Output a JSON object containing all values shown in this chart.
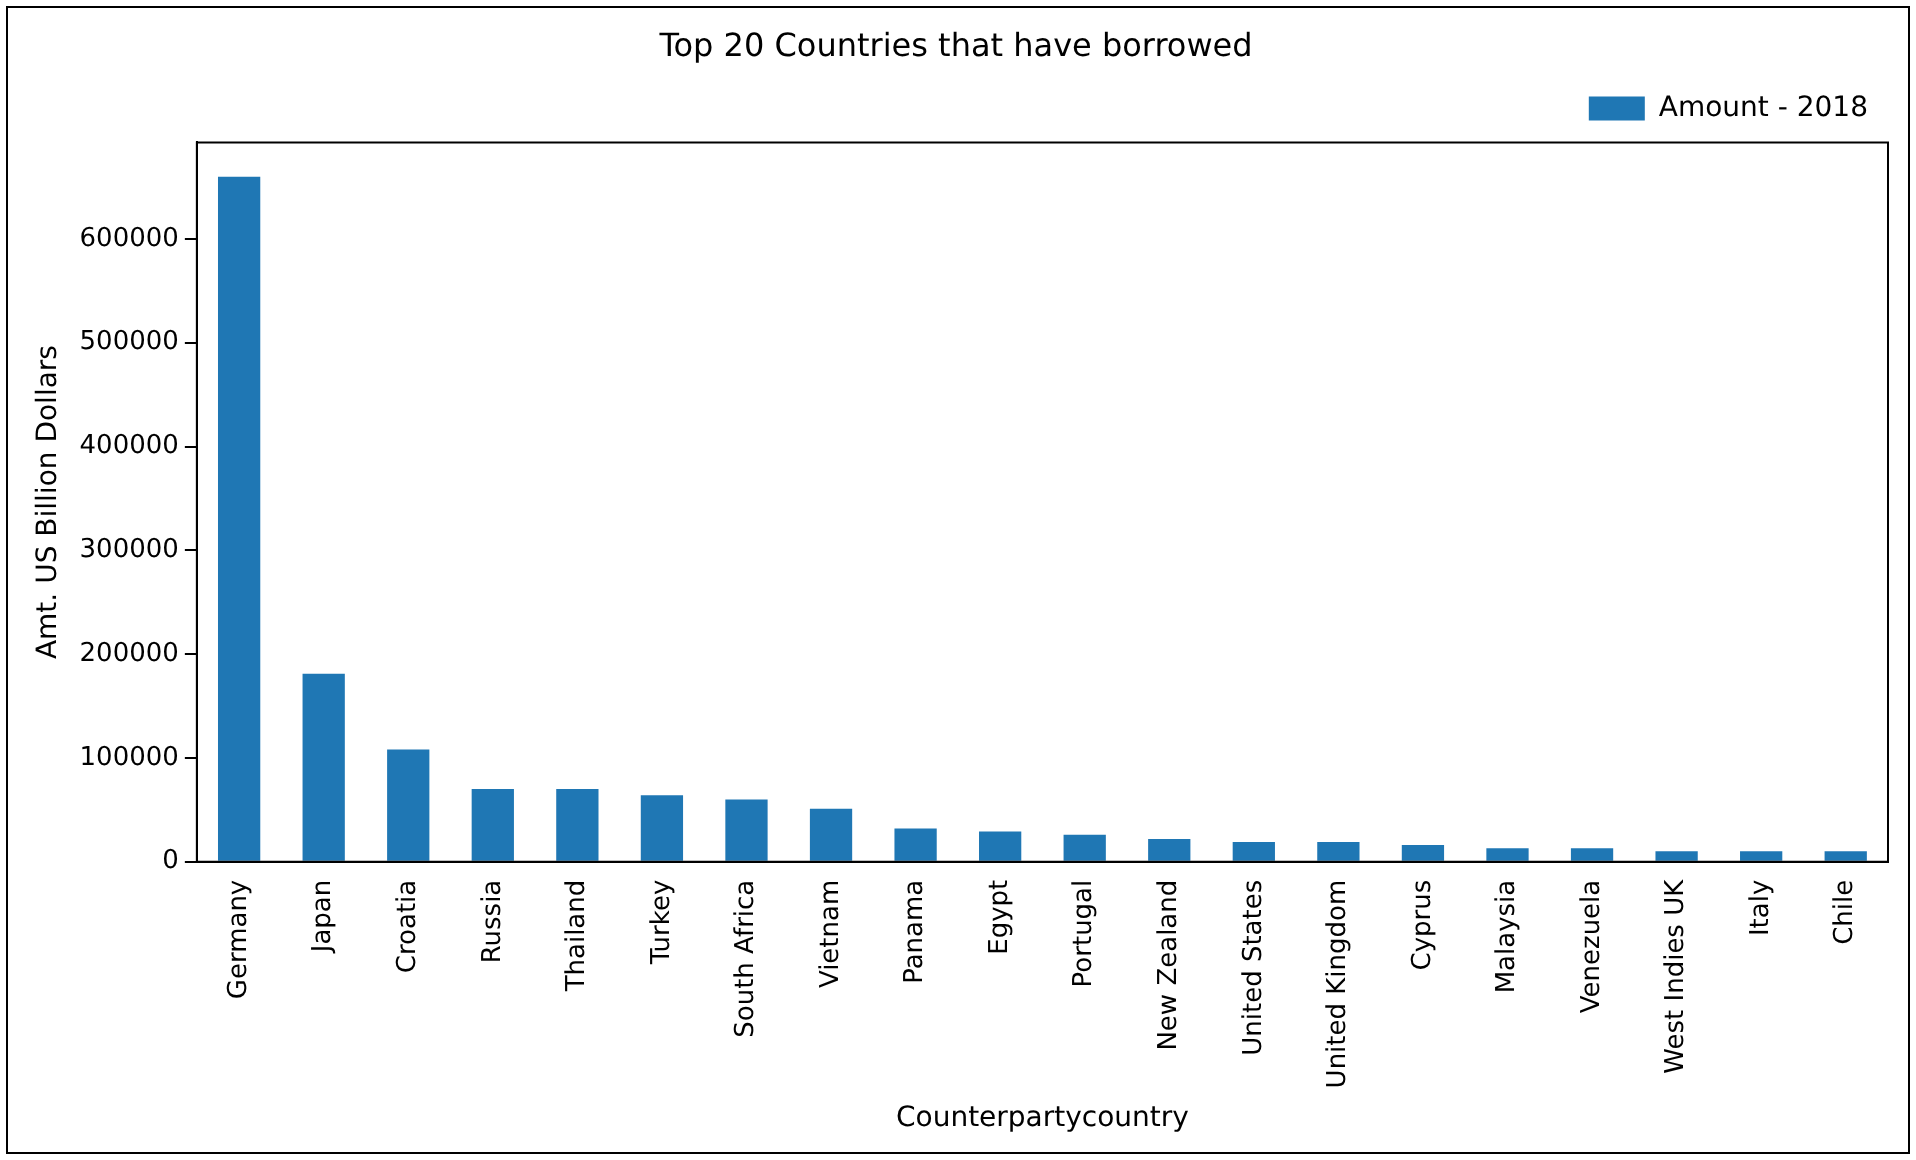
{
  "chart_data": {
    "type": "bar",
    "title": "Top 20 Countries that have borrowed",
    "xlabel": "Counterpartycountry",
    "ylabel": "Amt. US Billion Dollars",
    "categories": [
      "Germany",
      "Japan",
      "Croatia",
      "Russia",
      "Thailand",
      "Turkey",
      "South Africa",
      "Vietnam",
      "Panama",
      "Egypt",
      "Portugal",
      "New Zealand",
      "United States",
      "United Kingdom",
      "Cyprus",
      "Malaysia",
      "Venezuela",
      "West Indies UK",
      "Italy",
      "Chile"
    ],
    "series": [
      {
        "name": "Amount - 2018",
        "color": "#1f77b4",
        "values": [
          660000,
          181000,
          108000,
          70000,
          70000,
          64000,
          60000,
          51000,
          32000,
          29000,
          26000,
          22000,
          19000,
          19000,
          16000,
          13000,
          13000,
          10000,
          10000,
          10000
        ]
      }
    ],
    "ylim": [
      0,
      693000
    ],
    "yticks": [
      0,
      100000,
      200000,
      300000,
      400000,
      500000,
      600000
    ],
    "grid": false,
    "legend": "top right"
  }
}
